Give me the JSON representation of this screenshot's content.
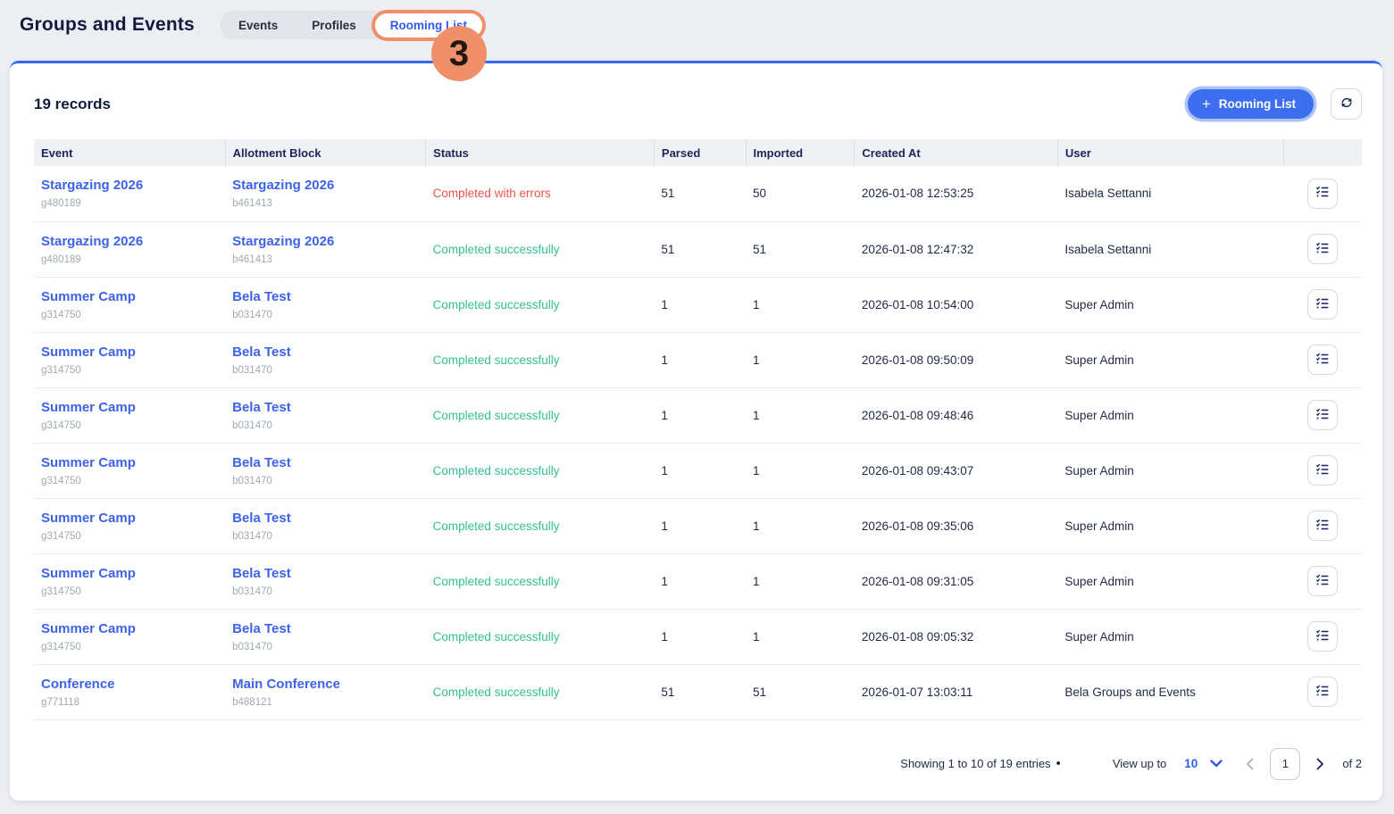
{
  "page": {
    "title": "Groups and Events",
    "records_count": "19 records"
  },
  "annotation": {
    "number": "3"
  },
  "tabs": [
    {
      "label": "Events",
      "active": false
    },
    {
      "label": "Profiles",
      "active": false
    },
    {
      "label": "Rooming List",
      "active": true
    }
  ],
  "toolbar": {
    "plus_icon": "+",
    "add_button_label": "Rooming List",
    "refresh_icon": "refresh"
  },
  "table": {
    "columns": [
      {
        "key": "event",
        "label": "Event"
      },
      {
        "key": "block",
        "label": "Allotment Block"
      },
      {
        "key": "status",
        "label": "Status"
      },
      {
        "key": "parsed",
        "label": "Parsed"
      },
      {
        "key": "imported",
        "label": "Imported"
      },
      {
        "key": "created_at",
        "label": "Created At"
      },
      {
        "key": "user",
        "label": "User"
      },
      {
        "key": "actions",
        "label": ""
      }
    ],
    "rows": [
      {
        "event": "Stargazing 2026",
        "event_id": "g480189",
        "block": "Stargazing 2026",
        "block_id": "b461413",
        "status": "Completed with errors",
        "status_type": "error",
        "parsed": "51",
        "imported": "50",
        "created_at": "2026-01-08 12:53:25",
        "user": "Isabela Settanni"
      },
      {
        "event": "Stargazing 2026",
        "event_id": "g480189",
        "block": "Stargazing 2026",
        "block_id": "b461413",
        "status": "Completed successfully",
        "status_type": "success",
        "parsed": "51",
        "imported": "51",
        "created_at": "2026-01-08 12:47:32",
        "user": "Isabela Settanni"
      },
      {
        "event": "Summer Camp",
        "event_id": "g314750",
        "block": "Bela Test",
        "block_id": "b031470",
        "status": "Completed successfully",
        "status_type": "success",
        "parsed": "1",
        "imported": "1",
        "created_at": "2026-01-08 10:54:00",
        "user": "Super Admin"
      },
      {
        "event": "Summer Camp",
        "event_id": "g314750",
        "block": "Bela Test",
        "block_id": "b031470",
        "status": "Completed successfully",
        "status_type": "success",
        "parsed": "1",
        "imported": "1",
        "created_at": "2026-01-08 09:50:09",
        "user": "Super Admin"
      },
      {
        "event": "Summer Camp",
        "event_id": "g314750",
        "block": "Bela Test",
        "block_id": "b031470",
        "status": "Completed successfully",
        "status_type": "success",
        "parsed": "1",
        "imported": "1",
        "created_at": "2026-01-08 09:48:46",
        "user": "Super Admin"
      },
      {
        "event": "Summer Camp",
        "event_id": "g314750",
        "block": "Bela Test",
        "block_id": "b031470",
        "status": "Completed successfully",
        "status_type": "success",
        "parsed": "1",
        "imported": "1",
        "created_at": "2026-01-08 09:43:07",
        "user": "Super Admin"
      },
      {
        "event": "Summer Camp",
        "event_id": "g314750",
        "block": "Bela Test",
        "block_id": "b031470",
        "status": "Completed successfully",
        "status_type": "success",
        "parsed": "1",
        "imported": "1",
        "created_at": "2026-01-08 09:35:06",
        "user": "Super Admin"
      },
      {
        "event": "Summer Camp",
        "event_id": "g314750",
        "block": "Bela Test",
        "block_id": "b031470",
        "status": "Completed successfully",
        "status_type": "success",
        "parsed": "1",
        "imported": "1",
        "created_at": "2026-01-08 09:31:05",
        "user": "Super Admin"
      },
      {
        "event": "Summer Camp",
        "event_id": "g314750",
        "block": "Bela Test",
        "block_id": "b031470",
        "status": "Completed successfully",
        "status_type": "success",
        "parsed": "1",
        "imported": "1",
        "created_at": "2026-01-08 09:05:32",
        "user": "Super Admin"
      },
      {
        "event": "Conference",
        "event_id": "g771118",
        "block": "Main Conference",
        "block_id": "b488121",
        "status": "Completed successfully",
        "status_type": "success",
        "parsed": "51",
        "imported": "51",
        "created_at": "2026-01-07 13:03:11",
        "user": "Bela Groups and Events"
      }
    ]
  },
  "pagination": {
    "showing_text": "Showing 1 to 10 of 19 entries",
    "separator": "•",
    "view_up_to_label": "View up to",
    "page_size": "10",
    "current_page": "1",
    "total_pages_label": "of 2"
  },
  "colors": {
    "accent_blue": "#3d6ef0",
    "link_blue": "#3d63e8",
    "navy_text": "#121b3d",
    "annotation_coral": "#f0906b",
    "status_error_red": "#ef544b",
    "status_success_green": "#35c08e"
  }
}
